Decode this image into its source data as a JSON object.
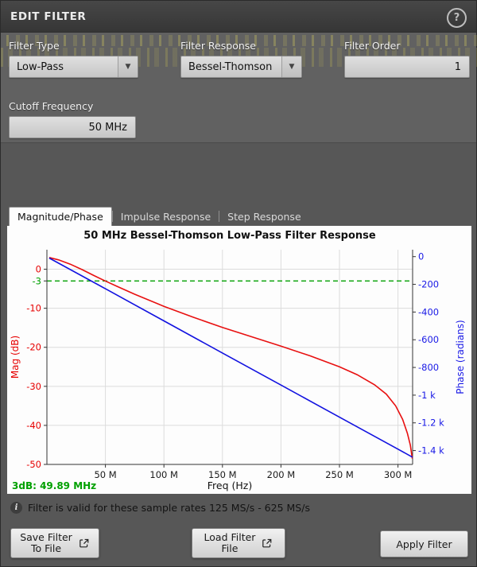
{
  "titlebar": {
    "title": "EDIT FILTER",
    "help_glyph": "?"
  },
  "form": {
    "filter_type": {
      "label": "Filter Type",
      "value": "Low-Pass"
    },
    "filter_response": {
      "label": "Filter Response",
      "value": "Bessel-Thomson"
    },
    "filter_order": {
      "label": "Filter Order",
      "value": "1"
    },
    "cutoff_frequency": {
      "label": "Cutoff Frequency",
      "value": "50 MHz"
    }
  },
  "icons": {
    "dropdown_arrow": "▼",
    "info_glyph": "i"
  },
  "tabs": [
    {
      "label": "Magnitude/Phase",
      "active": true
    },
    {
      "label": "Impulse Response",
      "active": false
    },
    {
      "label": "Step Response",
      "active": false
    }
  ],
  "chart_data": {
    "type": "line",
    "title": "50 MHz Bessel-Thomson Low-Pass Filter Response",
    "xlabel": "Freq (Hz)",
    "x_unit": "MHz",
    "x_range": [
      0,
      312.5
    ],
    "x_ticks": [
      {
        "v": 50,
        "label": "50 M"
      },
      {
        "v": 100,
        "label": "100 M"
      },
      {
        "v": 150,
        "label": "150 M"
      },
      {
        "v": 200,
        "label": "200 M"
      },
      {
        "v": 250,
        "label": "250 M"
      },
      {
        "v": 300,
        "label": "300 M"
      }
    ],
    "grid": true,
    "grid_color": "#dcdcdc",
    "mag_axis": {
      "label": "Mag (dB)",
      "color": "#e60000",
      "range": [
        5,
        -50
      ],
      "ticks": [
        {
          "v": 0,
          "label": "0"
        },
        {
          "v": -3,
          "label": "-3"
        },
        {
          "v": -10,
          "label": "-10"
        },
        {
          "v": -20,
          "label": "-20"
        },
        {
          "v": -30,
          "label": "-30"
        },
        {
          "v": -40,
          "label": "-40"
        },
        {
          "v": -50,
          "label": "-50"
        }
      ]
    },
    "phase_axis": {
      "label": "Phase (radians)",
      "color": "#1a1ae6",
      "range": [
        50,
        -1500
      ],
      "ticks": [
        {
          "v": 0,
          "label": "0"
        },
        {
          "v": -200,
          "label": "-200"
        },
        {
          "v": -400,
          "label": "-400"
        },
        {
          "v": -600,
          "label": "-600"
        },
        {
          "v": -800,
          "label": "-800"
        },
        {
          "v": -1000,
          "label": "-1 k"
        },
        {
          "v": -1200,
          "label": "-1.2 k"
        },
        {
          "v": -1400,
          "label": "-1.4 k"
        }
      ]
    },
    "threshold": {
      "value": -3,
      "color": "#00a000",
      "style": "dashed"
    },
    "annotation": {
      "text": "3dB: 49.89 MHz",
      "color": "#00a000"
    },
    "series": [
      {
        "name": "magnitude-curve",
        "axis": "mag",
        "color": "#e81010",
        "points": [
          [
            2,
            3.0
          ],
          [
            10,
            2.4
          ],
          [
            20,
            1.3
          ],
          [
            30,
            -0.1
          ],
          [
            40,
            -1.6
          ],
          [
            49.89,
            -3.0
          ],
          [
            60,
            -4.4
          ],
          [
            75,
            -6.4
          ],
          [
            100,
            -9.5
          ],
          [
            125,
            -12.3
          ],
          [
            150,
            -14.9
          ],
          [
            175,
            -17.3
          ],
          [
            200,
            -19.7
          ],
          [
            225,
            -22.2
          ],
          [
            250,
            -25.0
          ],
          [
            265,
            -27.0
          ],
          [
            280,
            -29.6
          ],
          [
            290,
            -32.0
          ],
          [
            298,
            -35.0
          ],
          [
            304,
            -38.5
          ],
          [
            308,
            -42.0
          ],
          [
            310.5,
            -45.0
          ],
          [
            312.2,
            -48.5
          ]
        ]
      },
      {
        "name": "phase-curve",
        "axis": "phase",
        "color": "#1212e0",
        "points": [
          [
            2,
            -10
          ],
          [
            50,
            -232
          ],
          [
            100,
            -464
          ],
          [
            150,
            -696
          ],
          [
            200,
            -927
          ],
          [
            250,
            -1159
          ],
          [
            300,
            -1390
          ],
          [
            312.4,
            -1448
          ]
        ]
      }
    ]
  },
  "footer": {
    "info_text": "Filter is valid for these sample rates 125 MS/s - 625 MS/s",
    "save_button": {
      "line1": "Save Filter",
      "line2": "To File"
    },
    "load_button": {
      "line1": "Load Filter",
      "line2": "File"
    },
    "apply_button": "Apply Filter"
  },
  "colors": {
    "accent_green": "#00a000",
    "mag_red": "#e60000",
    "phase_blue": "#1a1ae6"
  }
}
